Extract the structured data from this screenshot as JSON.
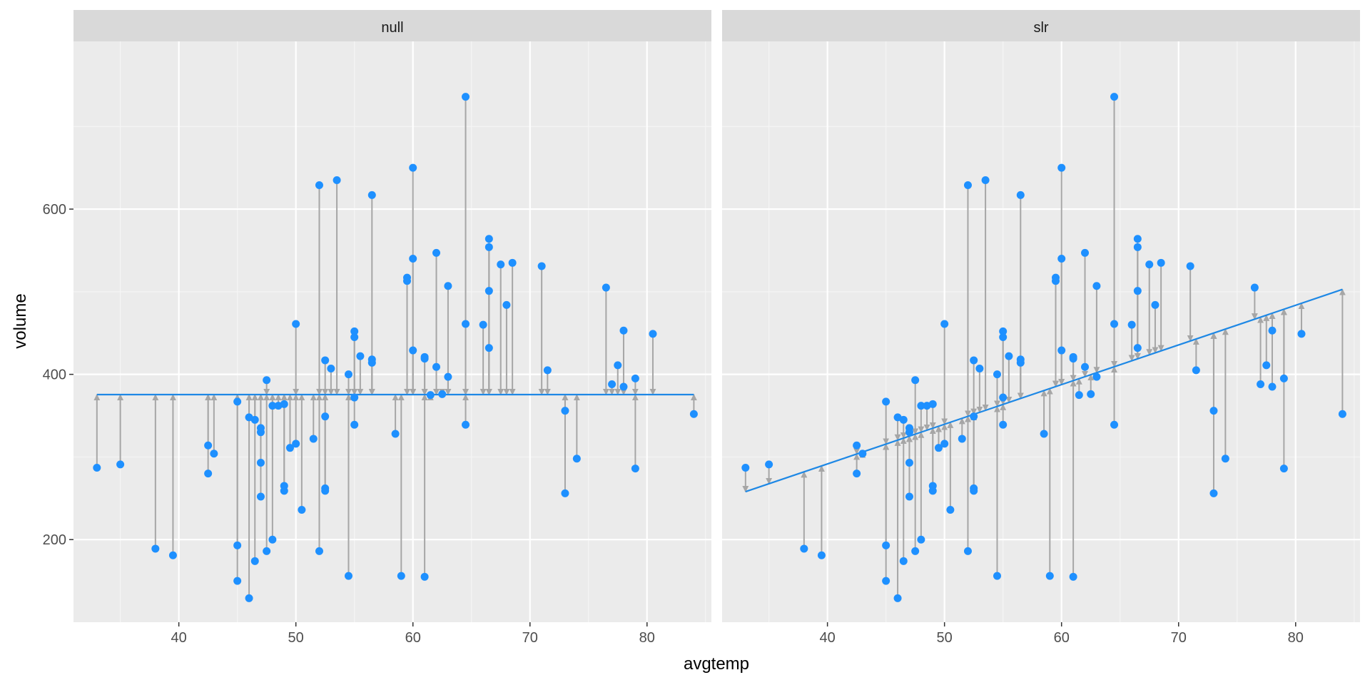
{
  "chart_data": {
    "type": "scatter",
    "xlabel": "avgtemp",
    "ylabel": "volume",
    "xlim": [
      31,
      85.5
    ],
    "ylim": [
      100,
      803
    ],
    "x_ticks": [
      40,
      50,
      60,
      70,
      80
    ],
    "y_ticks": [
      200,
      400,
      600
    ],
    "grid": true,
    "colors": {
      "point": "#1e90ff",
      "fit_line": "#1e88e5",
      "residual": "#a6a6a6",
      "panel_bg": "#ebebeb",
      "strip_bg": "#d9d9d9",
      "grid_major": "#ffffff",
      "grid_minor": "#f5f5f5"
    },
    "facets": [
      {
        "label": "null",
        "intercept": 375.5,
        "slope": 0
      },
      {
        "label": "slr",
        "intercept": 99.6,
        "slope": 4.8
      }
    ],
    "points": [
      {
        "x": 33,
        "y": 287
      },
      {
        "x": 35,
        "y": 291
      },
      {
        "x": 38,
        "y": 189
      },
      {
        "x": 39.5,
        "y": 181
      },
      {
        "x": 42.5,
        "y": 314
      },
      {
        "x": 42.5,
        "y": 280
      },
      {
        "x": 43,
        "y": 304
      },
      {
        "x": 45,
        "y": 367
      },
      {
        "x": 45,
        "y": 193
      },
      {
        "x": 45,
        "y": 150
      },
      {
        "x": 46,
        "y": 348
      },
      {
        "x": 46,
        "y": 129
      },
      {
        "x": 46.5,
        "y": 345
      },
      {
        "x": 46.5,
        "y": 174
      },
      {
        "x": 47,
        "y": 335
      },
      {
        "x": 47,
        "y": 330
      },
      {
        "x": 47,
        "y": 293
      },
      {
        "x": 47,
        "y": 252
      },
      {
        "x": 47.5,
        "y": 393
      },
      {
        "x": 47.5,
        "y": 186
      },
      {
        "x": 48,
        "y": 362
      },
      {
        "x": 48,
        "y": 200
      },
      {
        "x": 48.5,
        "y": 362
      },
      {
        "x": 49,
        "y": 364
      },
      {
        "x": 49,
        "y": 265
      },
      {
        "x": 49,
        "y": 259
      },
      {
        "x": 49.5,
        "y": 311
      },
      {
        "x": 50,
        "y": 461
      },
      {
        "x": 50,
        "y": 316
      },
      {
        "x": 50.5,
        "y": 236
      },
      {
        "x": 51.5,
        "y": 322
      },
      {
        "x": 52,
        "y": 629
      },
      {
        "x": 52,
        "y": 186
      },
      {
        "x": 52.5,
        "y": 417
      },
      {
        "x": 52.5,
        "y": 349
      },
      {
        "x": 52.5,
        "y": 262
      },
      {
        "x": 52.5,
        "y": 259
      },
      {
        "x": 53,
        "y": 407
      },
      {
        "x": 53.5,
        "y": 635
      },
      {
        "x": 54.5,
        "y": 400
      },
      {
        "x": 54.5,
        "y": 156
      },
      {
        "x": 55,
        "y": 452
      },
      {
        "x": 55,
        "y": 445
      },
      {
        "x": 55,
        "y": 372
      },
      {
        "x": 55,
        "y": 339
      },
      {
        "x": 55.5,
        "y": 422
      },
      {
        "x": 56.5,
        "y": 617
      },
      {
        "x": 56.5,
        "y": 418
      },
      {
        "x": 56.5,
        "y": 414
      },
      {
        "x": 58.5,
        "y": 328
      },
      {
        "x": 59,
        "y": 156
      },
      {
        "x": 59.5,
        "y": 517
      },
      {
        "x": 59.5,
        "y": 513
      },
      {
        "x": 60,
        "y": 650
      },
      {
        "x": 60,
        "y": 540
      },
      {
        "x": 60,
        "y": 429
      },
      {
        "x": 61,
        "y": 421
      },
      {
        "x": 61,
        "y": 419
      },
      {
        "x": 61,
        "y": 155
      },
      {
        "x": 61.5,
        "y": 375
      },
      {
        "x": 62,
        "y": 547
      },
      {
        "x": 62,
        "y": 409
      },
      {
        "x": 62.5,
        "y": 376
      },
      {
        "x": 63,
        "y": 507
      },
      {
        "x": 63,
        "y": 397
      },
      {
        "x": 64.5,
        "y": 736
      },
      {
        "x": 64.5,
        "y": 461
      },
      {
        "x": 64.5,
        "y": 339
      },
      {
        "x": 66,
        "y": 460
      },
      {
        "x": 66.5,
        "y": 564
      },
      {
        "x": 66.5,
        "y": 554
      },
      {
        "x": 66.5,
        "y": 501
      },
      {
        "x": 66.5,
        "y": 432
      },
      {
        "x": 67.5,
        "y": 533
      },
      {
        "x": 68,
        "y": 484
      },
      {
        "x": 68.5,
        "y": 535
      },
      {
        "x": 71,
        "y": 531
      },
      {
        "x": 71.5,
        "y": 405
      },
      {
        "x": 73,
        "y": 356
      },
      {
        "x": 73,
        "y": 256
      },
      {
        "x": 74,
        "y": 298
      },
      {
        "x": 76.5,
        "y": 505
      },
      {
        "x": 77,
        "y": 388
      },
      {
        "x": 77.5,
        "y": 411
      },
      {
        "x": 78,
        "y": 453
      },
      {
        "x": 78,
        "y": 385
      },
      {
        "x": 79,
        "y": 395
      },
      {
        "x": 79,
        "y": 286
      },
      {
        "x": 80.5,
        "y": 449
      },
      {
        "x": 84,
        "y": 352
      }
    ]
  }
}
